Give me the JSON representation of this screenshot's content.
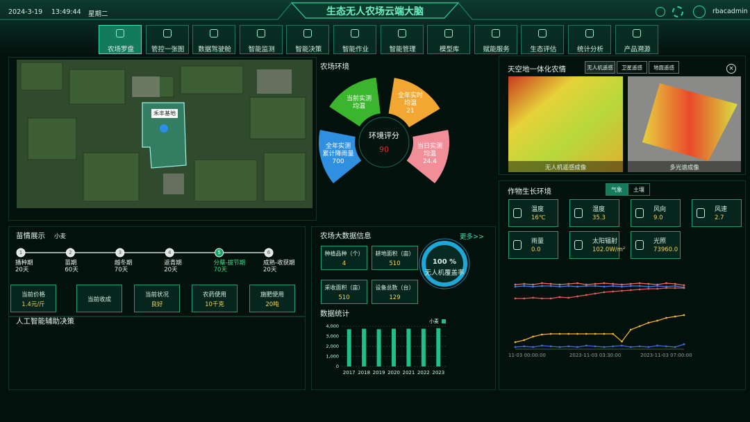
{
  "header": {
    "date": "2024-3-19",
    "time": "13:49:44",
    "weekday": "星期二",
    "title": "生态无人农场云端大脑",
    "user": "rbacadmin"
  },
  "nav": [
    "农场罗盘",
    "管控一张图",
    "数据驾驶舱",
    "智能监测",
    "智能决策",
    "智能作业",
    "智能管理",
    "模型库",
    "赋能服务",
    "生态评估",
    "统计分析",
    "产品溯源"
  ],
  "map": {
    "farm_label": "禾丰基地"
  },
  "environment": {
    "title": "农场环境",
    "score_label": "环境评分",
    "score": 90,
    "petals": [
      {
        "lines": [
          "当前实测",
          "均温"
        ],
        "color": "#3bb52e"
      },
      {
        "lines": [
          "全年实时",
          "均温"
        ],
        "value": 21,
        "color": "#f2a733"
      },
      {
        "lines": [
          "当日实测",
          "均温"
        ],
        "value": 24.4,
        "color": "#f28e98"
      },
      {
        "lines": [
          "全年实测",
          "累计降雨量"
        ],
        "value": 700,
        "color": "#2f8fe0"
      }
    ]
  },
  "sky": {
    "title": "天空地一体化农情",
    "tabs": [
      "无人机遥感",
      "卫星遥感",
      "地面遥感"
    ],
    "captions": [
      "无人机遥感成像",
      "多光谱成像"
    ]
  },
  "growth": {
    "title": "作物生长环境",
    "tabs": [
      "气象",
      "土壤"
    ],
    "metrics": [
      {
        "label": "温度",
        "value": "16℃"
      },
      {
        "label": "湿度",
        "value": "35.3"
      },
      {
        "label": "风向",
        "value": "9.0"
      },
      {
        "label": "风速",
        "value": "2.7"
      },
      {
        "label": "雨量",
        "value": "0.0"
      },
      {
        "label": "太阳辐射",
        "value": "102.0W/m²"
      },
      {
        "label": "光照",
        "value": "73960.0"
      }
    ]
  },
  "growth_chart": {
    "type": "line",
    "x": [
      "11-03 00:00:00",
      null,
      null,
      null,
      null,
      null,
      null,
      null,
      null,
      "2023-11-03 03:30:00",
      null,
      null,
      null,
      null,
      null,
      null,
      null,
      "2023-11-03 07:00:00",
      null,
      null
    ],
    "series": [
      {
        "color": "#e8705e",
        "values": [
          110,
          111,
          110,
          112,
          111,
          110,
          111,
          112,
          110,
          111,
          112,
          111,
          110,
          111,
          112,
          111,
          110,
          112,
          111,
          109
        ]
      },
      {
        "color": "#4a7fe8",
        "values": [
          107,
          108,
          107,
          108,
          108,
          107,
          108,
          107,
          108,
          108,
          107,
          108,
          107,
          108,
          108,
          107,
          108,
          107,
          108,
          106
        ]
      },
      {
        "color": "#e85a5a",
        "values": [
          90,
          90,
          91,
          90,
          90,
          92,
          91,
          93,
          95,
          97,
          99,
          100,
          101,
          102,
          103,
          104,
          104,
          105,
          105,
          105
        ]
      },
      {
        "color": "#f2b233",
        "values": [
          27,
          30,
          35,
          38,
          39,
          39,
          39,
          39,
          39,
          39,
          39,
          39,
          28,
          45,
          50,
          55,
          58,
          62,
          64,
          66
        ]
      },
      {
        "color": "#3e6fe0",
        "values": [
          20,
          21,
          20,
          22,
          21,
          20,
          21,
          20,
          22,
          21,
          20,
          21,
          22,
          20,
          21,
          20,
          22,
          21,
          20,
          24
        ]
      }
    ]
  },
  "seedling": {
    "title": "苗情展示",
    "crop": "小麦",
    "stages": [
      {
        "step": 1,
        "name": "播种期",
        "days": "20天"
      },
      {
        "step": 2,
        "name": "苗期",
        "days": "60天"
      },
      {
        "step": 3,
        "name": "越冬期",
        "days": "70天"
      },
      {
        "step": 4,
        "name": "返青期",
        "days": "20天"
      },
      {
        "step": 5,
        "name": "分蘖-拔节期",
        "days": "70天"
      },
      {
        "step": 6,
        "name": "成熟-收获期",
        "days": "20天"
      }
    ],
    "cards": [
      {
        "label": "当前价格",
        "value": "1.4元/斤"
      },
      {
        "label": "当前收成"
      },
      {
        "label": "当前状况",
        "value": "良好"
      },
      {
        "label": "农药使用",
        "value": "10千克"
      },
      {
        "label": "施肥使用",
        "value": "20吨"
      }
    ]
  },
  "ai": {
    "title": "人工智能辅助决策"
  },
  "bigdata": {
    "title": "农场大数据信息",
    "more": "更多>>",
    "items": [
      {
        "label": "种植品种（个）",
        "value": 4
      },
      {
        "label": "耕地面积（亩）",
        "value": 510
      },
      {
        "label": "采收面积（亩）",
        "value": 510
      },
      {
        "label": "设备总数（台）",
        "value": 129
      }
    ],
    "ring_value": "100 %",
    "ring_label": "无人机覆盖率"
  },
  "stats": {
    "title": "数据统计"
  },
  "stats_chart": {
    "type": "bar",
    "categories": [
      "2017",
      "2018",
      "2019",
      "2020",
      "2021",
      "2022",
      "2023"
    ],
    "series": [
      {
        "name": "小麦",
        "color": "#1fbf86",
        "values": [
          3700,
          3750,
          3700,
          3750,
          3750,
          3750,
          3800
        ]
      }
    ],
    "ylim": [
      0,
      4000
    ],
    "yticks": [
      0,
      {
        "value": 1000,
        "label": "1,000"
      },
      {
        "value": 2000,
        "label": "2,000"
      },
      {
        "value": 3000,
        "label": "3,000"
      },
      {
        "value": 4000,
        "label": "4,000"
      }
    ],
    "grid": true
  }
}
